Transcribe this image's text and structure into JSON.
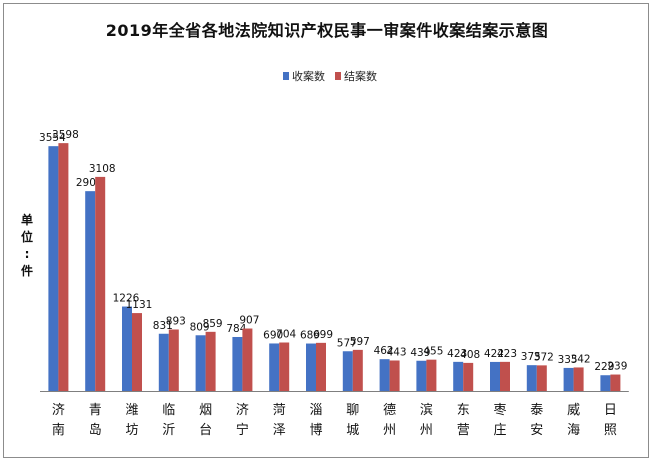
{
  "chart_data": {
    "type": "bar",
    "title": "2019年全省各地法院知识产权民事一审案件收案结案示意图",
    "ylabel": "单位：件",
    "categories": [
      "济南",
      "青岛",
      "潍坊",
      "临沂",
      "烟台",
      "济宁",
      "菏泽",
      "淄博",
      "聊城",
      "德州",
      "滨州",
      "东营",
      "枣庄",
      "泰安",
      "威海",
      "日照"
    ],
    "series": [
      {
        "name": "收案数",
        "color": "#4472c4",
        "values": [
          3554,
          2901,
          1226,
          831,
          809,
          784,
          690,
          689,
          577,
          462,
          439,
          423,
          422,
          375,
          335,
          229
        ]
      },
      {
        "name": "结案数",
        "color": "#c0504d",
        "values": [
          3598,
          3108,
          1131,
          893,
          859,
          907,
          704,
          699,
          597,
          443,
          455,
          408,
          423,
          372,
          342,
          239
        ]
      }
    ],
    "ylim": [
      0,
      3600
    ],
    "legend_position": "top-center",
    "grid": false
  }
}
